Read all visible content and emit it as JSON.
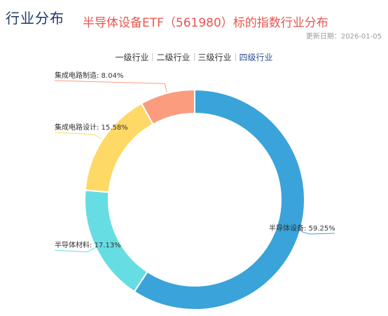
{
  "header": {
    "section_title": "行业分布",
    "chart_title": "半导体设备ETF（561980）标的指数行业分布",
    "update_date": "更新日期：2026-01-05"
  },
  "tabs": [
    {
      "label": "一级行业",
      "active": false
    },
    {
      "label": "二级行业",
      "active": false
    },
    {
      "label": "三级行业",
      "active": false
    },
    {
      "label": "四级行业",
      "active": true
    }
  ],
  "chart_data": {
    "type": "pie",
    "title": "半导体设备ETF（561980）标的指数行业分布",
    "donut": true,
    "slices": [
      {
        "name": "半导体设备",
        "value": 59.25,
        "label": "半导体设备: 59.25%",
        "color": "#3aa3d9"
      },
      {
        "name": "半导体材料",
        "value": 17.13,
        "label": "半导体材料: 17.13%",
        "color": "#66dde2"
      },
      {
        "name": "集成电路设计",
        "value": 15.58,
        "label": "集成电路设计: 15.58%",
        "color": "#fed966"
      },
      {
        "name": "集成电路制造",
        "value": 8.04,
        "label": "集成电路制造: 8.04%",
        "color": "#fb9c7e"
      }
    ]
  }
}
